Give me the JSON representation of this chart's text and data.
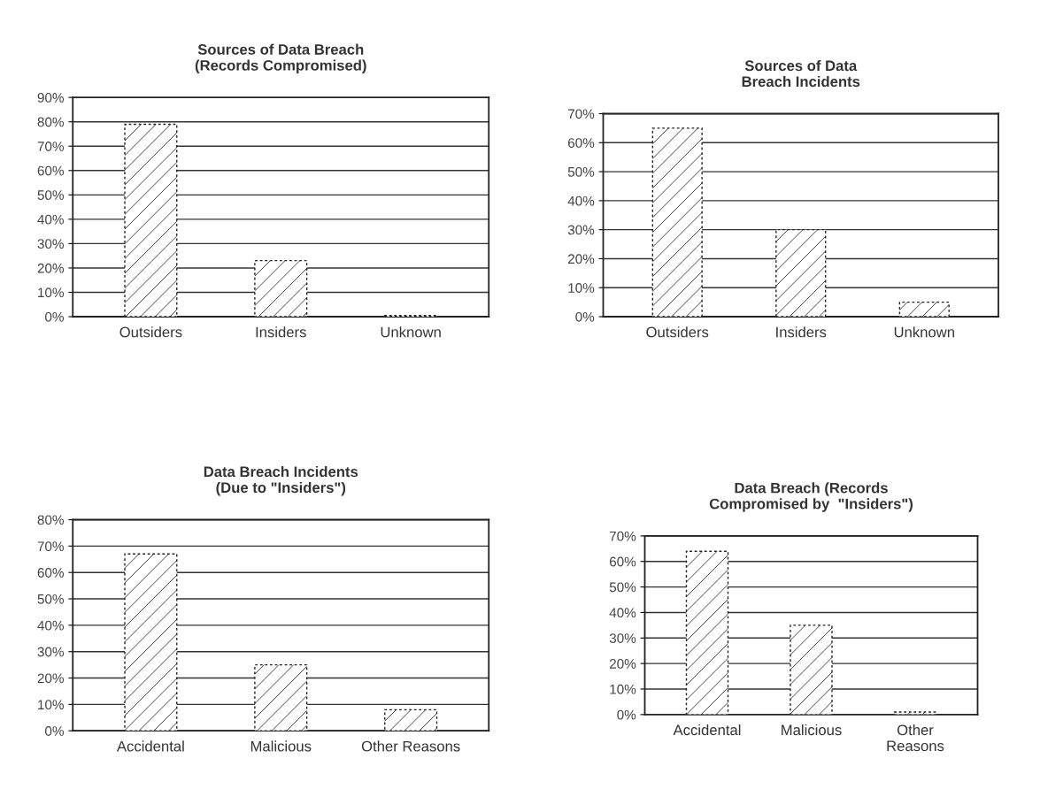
{
  "chart_data": [
    {
      "type": "bar",
      "title": "Sources of Data Breach\n(Records Compromised)",
      "categories": [
        "Outsiders",
        "Insiders",
        "Unknown"
      ],
      "values": [
        79,
        23,
        0.5
      ],
      "color": "#222222",
      "ylim": [
        0,
        90
      ],
      "yticks": [
        {
          "value": 0,
          "label": "0%"
        },
        {
          "value": 10,
          "label": "10%"
        },
        {
          "value": 20,
          "label": "20%"
        },
        {
          "value": 30,
          "label": "30%"
        },
        {
          "value": 40,
          "label": "40%"
        },
        {
          "value": 50,
          "label": "50%"
        },
        {
          "value": 60,
          "label": "60%"
        },
        {
          "value": 70,
          "label": "70%"
        },
        {
          "value": 80,
          "label": "80%"
        },
        {
          "value": 90,
          "label": "90%"
        }
      ],
      "grid": "y"
    },
    {
      "type": "bar",
      "title": "Sources of Data\nBreach Incidents",
      "categories": [
        "Outsiders",
        "Insiders",
        "Unknown"
      ],
      "values": [
        65,
        30,
        5
      ],
      "color": "#222222",
      "ylim": [
        0,
        70
      ],
      "yticks": [
        {
          "value": 0,
          "label": "0%"
        },
        {
          "value": 10,
          "label": "10%"
        },
        {
          "value": 20,
          "label": "20%"
        },
        {
          "value": 30,
          "label": "30%"
        },
        {
          "value": 40,
          "label": "40%"
        },
        {
          "value": 50,
          "label": "50%"
        },
        {
          "value": 60,
          "label": "60%"
        },
        {
          "value": 70,
          "label": "70%"
        }
      ],
      "grid": "y"
    },
    {
      "type": "bar",
      "title": "Data Breach Incidents\n(Due to \"Insiders\")",
      "categories": [
        "Accidental",
        "Malicious",
        "Other Reasons"
      ],
      "values": [
        67,
        25,
        8
      ],
      "color": "#222222",
      "ylim": [
        0,
        80
      ],
      "yticks": [
        {
          "value": 0,
          "label": "0%"
        },
        {
          "value": 10,
          "label": "10%"
        },
        {
          "value": 20,
          "label": "20%"
        },
        {
          "value": 30,
          "label": "30%"
        },
        {
          "value": 40,
          "label": "40%"
        },
        {
          "value": 50,
          "label": "50%"
        },
        {
          "value": 60,
          "label": "60%"
        },
        {
          "value": 70,
          "label": "70%"
        },
        {
          "value": 80,
          "label": "80%"
        }
      ],
      "grid": "y"
    },
    {
      "type": "bar",
      "title": "Data Breach (Records\nCompromised by  \"Insiders\")",
      "categories": [
        "Accidental",
        "Malicious",
        "Other\nReasons"
      ],
      "values": [
        64,
        35,
        1
      ],
      "color": "#222222",
      "ylim": [
        0,
        70
      ],
      "yticks": [
        {
          "value": 0,
          "label": "0%"
        },
        {
          "value": 10,
          "label": "10%"
        },
        {
          "value": 20,
          "label": "20%"
        },
        {
          "value": 30,
          "label": "30%"
        },
        {
          "value": 40,
          "label": "40%"
        },
        {
          "value": 50,
          "label": "50%"
        },
        {
          "value": 60,
          "label": "60%"
        },
        {
          "value": 70,
          "label": "70%"
        }
      ],
      "grid": "y"
    }
  ]
}
